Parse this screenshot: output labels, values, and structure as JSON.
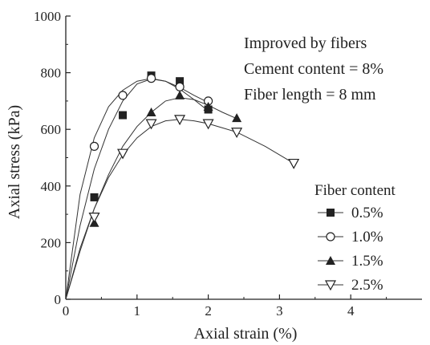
{
  "chart_data": {
    "type": "scatter",
    "xlabel": "Axial strain (%)",
    "ylabel": "Axial stress (kPa)",
    "xlim": [
      0,
      5
    ],
    "ylim": [
      0,
      1000
    ],
    "xticks": [
      0,
      1,
      2,
      3,
      4
    ],
    "yticks": [
      0,
      200,
      400,
      600,
      800,
      1000
    ],
    "xtick_labels": [
      "0",
      "1",
      "2",
      "3",
      "4"
    ],
    "ytick_labels": [
      "0",
      "200",
      "400",
      "600",
      "800",
      "1000"
    ],
    "grid": false,
    "annotations": [
      "Improved by fibers",
      "Cement content = 8%",
      "Fiber length = 8 mm"
    ],
    "legend_title": "Fiber content",
    "legend_position": "bottom-right",
    "series": [
      {
        "name": "0.5%",
        "marker": "filled-square",
        "color": "#222222",
        "x": [
          0,
          0.4,
          0.8,
          1.2,
          1.6,
          2.0
        ],
        "y": [
          0,
          360,
          650,
          790,
          770,
          670
        ],
        "curve_x": [
          0,
          0.2,
          0.4,
          0.6,
          0.8,
          1.0,
          1.2,
          1.4,
          1.6,
          1.8,
          2.0
        ],
        "curve_y": [
          0,
          260,
          460,
          600,
          700,
          760,
          778,
          770,
          742,
          705,
          665
        ]
      },
      {
        "name": "1.0%",
        "marker": "open-circle",
        "color": "#222222",
        "x": [
          0,
          0.4,
          0.8,
          1.2,
          1.6,
          2.0
        ],
        "y": [
          0,
          540,
          720,
          780,
          750,
          700
        ],
        "curve_x": [
          0,
          0.2,
          0.4,
          0.6,
          0.8,
          1.0,
          1.2,
          1.4,
          1.6,
          1.8,
          2.0
        ],
        "curve_y": [
          0,
          370,
          570,
          680,
          738,
          770,
          780,
          770,
          748,
          720,
          695
        ]
      },
      {
        "name": "1.5%",
        "marker": "filled-triangle",
        "color": "#222222",
        "x": [
          0,
          0.4,
          1.2,
          1.6,
          2.0,
          2.4
        ],
        "y": [
          0,
          270,
          660,
          720,
          680,
          640
        ],
        "curve_x": [
          0,
          0.2,
          0.4,
          0.6,
          0.8,
          1.0,
          1.2,
          1.4,
          1.6,
          1.8,
          2.0,
          2.2,
          2.4
        ],
        "curve_y": [
          0,
          170,
          320,
          440,
          540,
          610,
          660,
          700,
          712,
          705,
          685,
          660,
          638
        ]
      },
      {
        "name": "2.5%",
        "marker": "open-down-triangle",
        "color": "#222222",
        "x": [
          0,
          0.4,
          0.8,
          1.2,
          1.6,
          2.0,
          2.4,
          3.2
        ],
        "y": [
          0,
          290,
          515,
          620,
          635,
          620,
          590,
          480
        ],
        "curve_x": [
          0,
          0.2,
          0.4,
          0.6,
          0.8,
          1.0,
          1.2,
          1.4,
          1.6,
          1.8,
          2.0,
          2.2,
          2.4,
          2.8,
          3.2
        ],
        "curve_y": [
          0,
          180,
          320,
          430,
          510,
          570,
          610,
          630,
          635,
          630,
          620,
          605,
          590,
          540,
          480
        ]
      }
    ]
  }
}
